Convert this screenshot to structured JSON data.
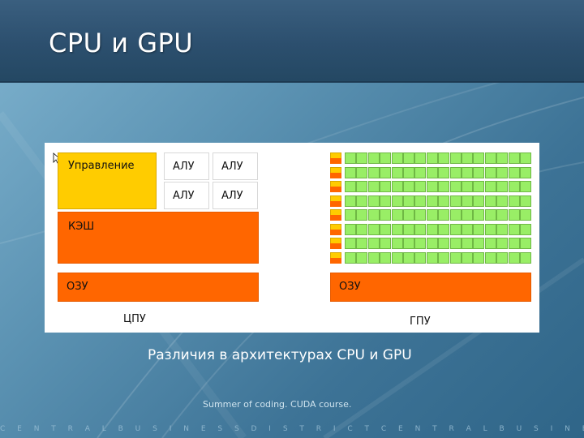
{
  "slide": {
    "title": "CPU и GPU",
    "subtitle": "Различия в архитектурах CPU и GPU",
    "footer": "Summer of coding. CUDA course.",
    "bottom_strip": "C E N T R A L B U S I N E S S D I S T R I C T C E N T R A L B U S I N E S S D I S T R I C T C E N T R A"
  },
  "diagram": {
    "cpu": {
      "control_label": "Управление",
      "alu_labels": [
        "АЛУ",
        "АЛУ",
        "АЛУ",
        "АЛУ"
      ],
      "cache_label": "КЭШ",
      "ram_label": "ОЗУ",
      "caption": "ЦПУ"
    },
    "gpu": {
      "ram_label": "ОЗУ",
      "caption": "ГПУ",
      "rows": 8,
      "alus_per_row": 16
    },
    "colors": {
      "control": "#ffcc00",
      "cache": "#ff6600",
      "alu_gpu": "#99ee66",
      "alu_cpu": "#ffffff"
    }
  }
}
